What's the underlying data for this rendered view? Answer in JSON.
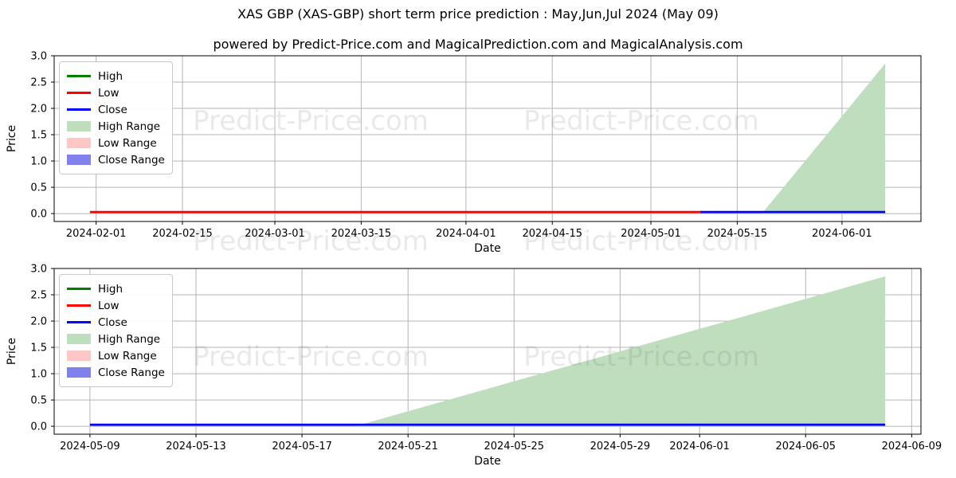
{
  "title": "XAS GBP (XAS-GBP) short term price prediction : May,Jun,Jul 2024 (May 09)",
  "subtitle": "powered by Predict-Price.com and MagicalPrediction.com and MagicalAnalysis.com",
  "watermark": {
    "text": "Predict-Price.com"
  },
  "colors": {
    "high": "#008000",
    "low": "#ff0000",
    "close": "#0000ff",
    "high_range": "#bedebe",
    "low_range": "#ffc6c6",
    "close_range": "#8181ee",
    "grid": "#b4b4b4",
    "spine": "#000000",
    "text": "#000000",
    "watermark": "rgba(105,105,105,0.15)"
  },
  "chart_data": [
    {
      "type": "line+area",
      "name": "full-horizon-prediction",
      "xlabel": "Date",
      "ylabel": "Price",
      "ylim": [
        -0.15,
        3.0
      ],
      "y_ticks": [
        0.0,
        0.5,
        1.0,
        1.5,
        2.0,
        2.5,
        3.0
      ],
      "x_ticks": [
        "2024-02-01",
        "2024-02-15",
        "2024-03-01",
        "2024-03-15",
        "2024-04-01",
        "2024-04-15",
        "2024-05-01",
        "2024-05-15",
        "2024-06-01"
      ],
      "grid": true,
      "legend_position": "upper-left",
      "series": [
        {
          "name": "Low",
          "kind": "line",
          "color_key": "low",
          "points": [
            [
              "2024-01-31",
              0.03
            ],
            [
              "2024-05-09",
              0.03
            ]
          ]
        },
        {
          "name": "Close",
          "kind": "line",
          "color_key": "close",
          "points": [
            [
              "2024-05-09",
              0.03
            ],
            [
              "2024-06-08",
              0.03
            ]
          ]
        },
        {
          "name": "High Range",
          "kind": "area",
          "color_key": "high_range",
          "baseline": 0,
          "points": [
            [
              "2024-05-19",
              0.0
            ],
            [
              "2024-06-08",
              2.85
            ]
          ]
        }
      ],
      "legend": [
        {
          "label": "High",
          "swatch": "line",
          "color_key": "high"
        },
        {
          "label": "Low",
          "swatch": "line",
          "color_key": "low"
        },
        {
          "label": "Close",
          "swatch": "line",
          "color_key": "close"
        },
        {
          "label": "High Range",
          "swatch": "patch",
          "color_key": "high_range"
        },
        {
          "label": "Low Range",
          "swatch": "patch",
          "color_key": "low_range"
        },
        {
          "label": "Close Range",
          "swatch": "patch",
          "color_key": "close_range"
        }
      ]
    },
    {
      "type": "line+area",
      "name": "short-horizon-prediction",
      "xlabel": "Date",
      "ylabel": "Price",
      "ylim": [
        -0.15,
        3.0
      ],
      "y_ticks": [
        0.0,
        0.5,
        1.0,
        1.5,
        2.0,
        2.5,
        3.0
      ],
      "x_ticks": [
        "2024-05-09",
        "2024-05-13",
        "2024-05-17",
        "2024-05-21",
        "2024-05-25",
        "2024-05-29",
        "2024-06-01",
        "2024-06-05",
        "2024-06-09"
      ],
      "grid": true,
      "legend_position": "upper-left",
      "series": [
        {
          "name": "Close",
          "kind": "line",
          "color_key": "close",
          "points": [
            [
              "2024-05-09",
              0.03
            ],
            [
              "2024-06-08",
              0.03
            ]
          ]
        },
        {
          "name": "High Range",
          "kind": "area",
          "color_key": "high_range",
          "baseline": 0,
          "points": [
            [
              "2024-05-19",
              0.0
            ],
            [
              "2024-06-08",
              2.85
            ]
          ]
        }
      ],
      "legend": [
        {
          "label": "High",
          "swatch": "line",
          "color_key": "high"
        },
        {
          "label": "Low",
          "swatch": "line",
          "color_key": "low"
        },
        {
          "label": "Close",
          "swatch": "line",
          "color_key": "close"
        },
        {
          "label": "High Range",
          "swatch": "patch",
          "color_key": "high_range"
        },
        {
          "label": "Low Range",
          "swatch": "patch",
          "color_key": "low_range"
        },
        {
          "label": "Close Range",
          "swatch": "patch",
          "color_key": "close_range"
        }
      ]
    }
  ]
}
